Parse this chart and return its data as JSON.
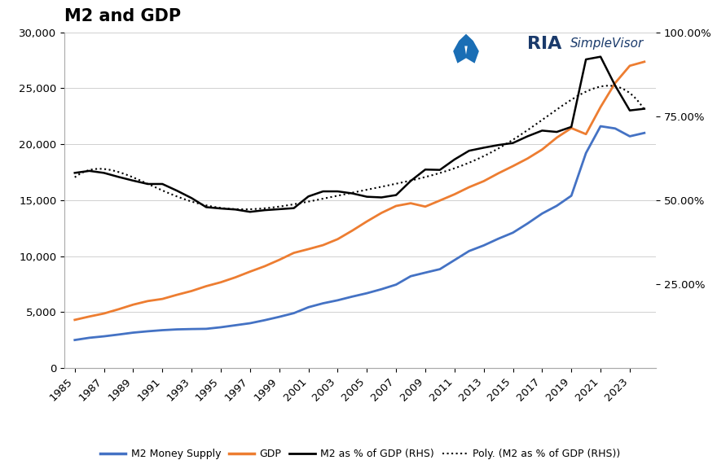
{
  "title": "M2 and GDP",
  "background_color": "#ffffff",
  "years": [
    1985,
    1986,
    1987,
    1988,
    1989,
    1990,
    1991,
    1992,
    1993,
    1994,
    1995,
    1996,
    1997,
    1998,
    1999,
    2000,
    2001,
    2002,
    2003,
    2004,
    2005,
    2006,
    2007,
    2008,
    2009,
    2010,
    2011,
    2012,
    2013,
    2014,
    2015,
    2016,
    2017,
    2018,
    2019,
    2020,
    2021,
    2022,
    2023,
    2024
  ],
  "m2": [
    2500,
    2700,
    2830,
    2990,
    3160,
    3280,
    3380,
    3450,
    3480,
    3500,
    3640,
    3820,
    4000,
    4270,
    4570,
    4900,
    5430,
    5780,
    6050,
    6380,
    6680,
    7040,
    7450,
    8200,
    8520,
    8830,
    9640,
    10450,
    10950,
    11550,
    12090,
    12910,
    13800,
    14490,
    15390,
    19200,
    21600,
    21400,
    20700,
    21000
  ],
  "gdp": [
    4300,
    4600,
    4870,
    5250,
    5660,
    5980,
    6170,
    6540,
    6880,
    7310,
    7660,
    8100,
    8609,
    9090,
    9661,
    10285,
    10622,
    10978,
    11511,
    12274,
    13094,
    13856,
    14478,
    14719,
    14419,
    14964,
    15518,
    16155,
    16692,
    17393,
    18037,
    18715,
    19519,
    20580,
    21433,
    20893,
    23315,
    25463,
    27000,
    27360
  ],
  "m2_pct_gdp": [
    58.1,
    58.7,
    58.1,
    56.9,
    55.8,
    54.8,
    54.8,
    52.8,
    50.6,
    47.9,
    47.5,
    47.2,
    46.5,
    47.0,
    47.3,
    47.6,
    51.1,
    52.6,
    52.6,
    52.0,
    51.0,
    50.8,
    51.5,
    55.7,
    59.1,
    59.0,
    62.1,
    64.7,
    65.6,
    66.4,
    67.0,
    69.0,
    70.7,
    70.3,
    71.8,
    91.9,
    92.7,
    84.1,
    76.7,
    77.2
  ],
  "ylim_left": [
    0,
    30000
  ],
  "ylim_right": [
    0,
    100
  ],
  "yticks_left": [
    0,
    5000,
    10000,
    15000,
    20000,
    25000,
    30000
  ],
  "yticks_right": [
    25,
    50,
    75,
    100
  ],
  "yticks_right_labels": [
    "25.00%",
    "50.00%",
    "75.00%",
    "100.00%"
  ],
  "xtick_years": [
    1985,
    1987,
    1989,
    1991,
    1993,
    1995,
    1997,
    1999,
    2001,
    2003,
    2005,
    2007,
    2009,
    2011,
    2013,
    2015,
    2017,
    2019,
    2021,
    2023
  ],
  "xlim": [
    1984.3,
    2024.8
  ],
  "color_m2": "#4472C4",
  "color_gdp": "#ED7D31",
  "color_pct": "#000000",
  "color_poly": "#000000",
  "color_grid": "#d0d0d0",
  "lw_m2": 2.0,
  "lw_gdp": 2.0,
  "lw_pct": 1.8,
  "lw_poly": 1.5,
  "poly_degree": 6,
  "legend_labels": [
    "M2 Money Supply",
    "GDP",
    "M2 as % of GDP (RHS)",
    "Poly. (M2 as % of GDP (RHS))"
  ],
  "title_fontsize": 15,
  "tick_fontsize": 9.5,
  "legend_fontsize": 9,
  "logo_ria_color": "#1a3a6b",
  "logo_sv_color": "#1a3a6b",
  "logo_icon_color": "#1a6eb5"
}
